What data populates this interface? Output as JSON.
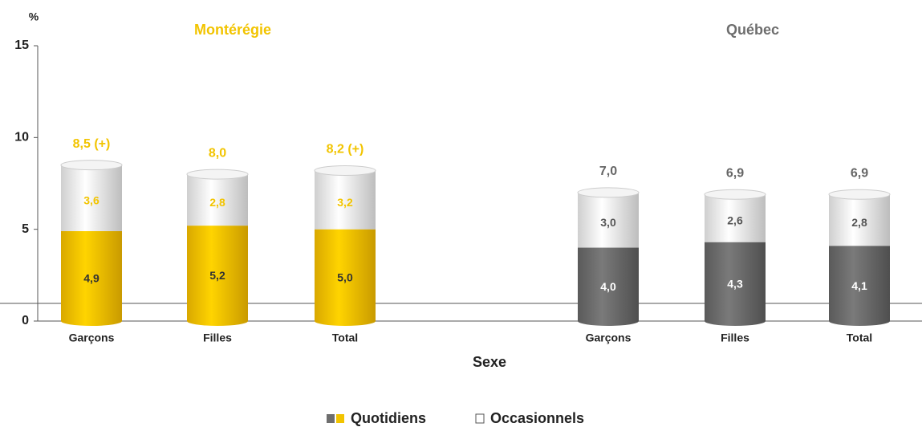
{
  "chart_data": {
    "type": "bar",
    "y_label": "%",
    "x_label": "Sexe",
    "ylim": [
      0,
      15
    ],
    "yticks": [
      0,
      5,
      10,
      15
    ],
    "legend": [
      "Quotidiens",
      "Occasionnels"
    ],
    "occasional_color": "#ffffff",
    "groups": [
      {
        "name": "Montérégie",
        "color": "#f2c400",
        "categories": [
          "Garçons",
          "Filles",
          "Total"
        ],
        "series": [
          {
            "name": "Quotidiens",
            "values": [
              4.9,
              5.2,
              5.0
            ],
            "value_labels": [
              "4,9",
              "5,2",
              "5,0"
            ]
          },
          {
            "name": "Occasionnels",
            "values": [
              3.6,
              2.8,
              3.2
            ],
            "value_labels": [
              "3,6",
              "2,8",
              "3,2"
            ]
          }
        ],
        "totals": {
          "values": [
            8.5,
            8.0,
            8.2
          ],
          "value_labels": [
            "8,5 (+)",
            "8,0",
            "8,2 (+)"
          ]
        }
      },
      {
        "name": "Québec",
        "color": "#6e6e6e",
        "categories": [
          "Garçons",
          "Filles",
          "Total"
        ],
        "series": [
          {
            "name": "Quotidiens",
            "values": [
              4.0,
              4.3,
              4.1
            ],
            "value_labels": [
              "4,0",
              "4,3",
              "4,1"
            ]
          },
          {
            "name": "Occasionnels",
            "values": [
              3.0,
              2.6,
              2.8
            ],
            "value_labels": [
              "3,0",
              "2,6",
              "2,8"
            ]
          }
        ],
        "totals": {
          "values": [
            7.0,
            6.9,
            6.9
          ],
          "value_labels": [
            "7,0",
            "6,9",
            "6,9"
          ]
        }
      }
    ]
  }
}
